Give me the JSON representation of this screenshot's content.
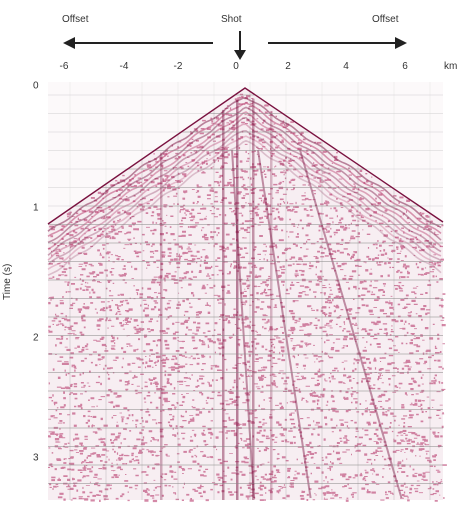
{
  "labels": {
    "offset_left": "Offset",
    "shot": "Shot",
    "offset_right": "Offset",
    "x_unit": "km",
    "y_axis": "Time (s)"
  },
  "x_ticks": [
    "-6",
    "-4",
    "-2",
    "0",
    "2",
    "4",
    "6"
  ],
  "y_ticks": [
    "0",
    "1",
    "2",
    "3"
  ],
  "colors": {
    "signal": "#b0285e",
    "signal_dark": "#7a1240",
    "background": "#f7eef2",
    "grid": "#8a8a8a"
  },
  "diagram": {
    "kind": "seismic-shot-gather",
    "x_range_km": [
      -6.6,
      6.8
    ],
    "time_range_s": [
      0,
      3.5
    ]
  }
}
